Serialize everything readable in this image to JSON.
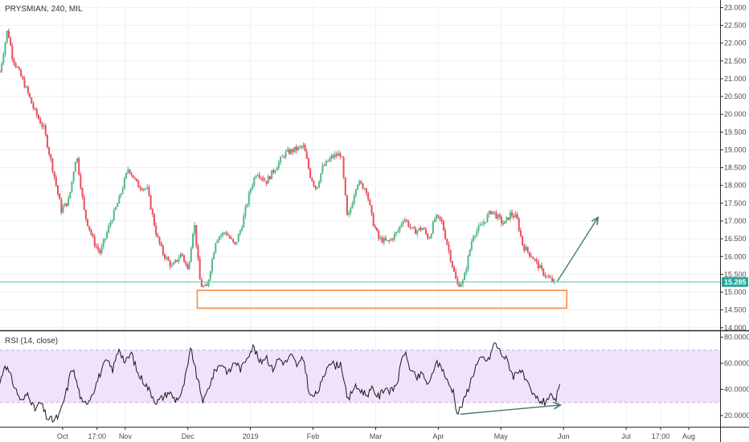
{
  "symbol_title": "PRYSMIAN, 240, MIL",
  "rsi_title": "RSI (14, close)",
  "last_price_label": "15.285",
  "colors": {
    "up": "#53b987",
    "down": "#eb4d5c",
    "grid": "#eef0f3",
    "last_price_line": "#4fc3b4",
    "last_price_badge": "#27a599",
    "rsi_line": "#1a1a1a",
    "rsi_band_fill": "#f1e2fb",
    "rsi_band_border": "#c9a9d9",
    "support_box": "#f0883e",
    "annotation_arrow": "#3e7f6c",
    "axis_border": "#2a2a2a"
  },
  "chart_data": [
    {
      "type": "candlestick",
      "title": "PRYSMIAN, 240, MIL",
      "y_tick_labels": [
        "23.000",
        "22.500",
        "22.000",
        "21.500",
        "21.000",
        "20.500",
        "20.000",
        "19.500",
        "19.000",
        "18.500",
        "18.000",
        "17.500",
        "17.000",
        "16.500",
        "16.000",
        "15.500",
        "15.000",
        "14.500",
        "14.000"
      ],
      "y_ticks": [
        23.0,
        22.5,
        22.0,
        21.5,
        21.0,
        20.5,
        20.0,
        19.5,
        19.0,
        18.5,
        18.0,
        17.5,
        17.0,
        16.5,
        16.0,
        15.5,
        15.0,
        14.5,
        14.0
      ],
      "ylim": [
        13.95,
        23.1
      ],
      "x_tick_labels": [
        "Oct",
        "17:00",
        "Nov",
        "Dec",
        "2019",
        "Feb",
        "Mar",
        "Apr",
        "May",
        "Jun",
        "Jul",
        "17:00",
        "Aug"
      ],
      "x_ticks": [
        1.0,
        1.55,
        2.0,
        3.0,
        4.0,
        5.0,
        6.0,
        7.0,
        8.0,
        9.0,
        10.0,
        10.55,
        11.0
      ],
      "x_unit": "months since start of Sep 2018",
      "last_price": 15.285,
      "price_path": [
        [
          0.0,
          21.2
        ],
        [
          0.12,
          22.4
        ],
        [
          0.2,
          21.6
        ],
        [
          0.4,
          20.8
        ],
        [
          0.55,
          20.1
        ],
        [
          0.7,
          19.6
        ],
        [
          0.85,
          18.4
        ],
        [
          0.98,
          17.3
        ],
        [
          1.1,
          17.6
        ],
        [
          1.22,
          18.9
        ],
        [
          1.35,
          17.2
        ],
        [
          1.5,
          16.4
        ],
        [
          1.6,
          16.1
        ],
        [
          1.75,
          16.9
        ],
        [
          1.9,
          17.6
        ],
        [
          2.05,
          18.5
        ],
        [
          2.2,
          18.0
        ],
        [
          2.35,
          17.9
        ],
        [
          2.5,
          16.6
        ],
        [
          2.6,
          16.1
        ],
        [
          2.75,
          15.7
        ],
        [
          2.9,
          16.1
        ],
        [
          3.0,
          15.6
        ],
        [
          3.1,
          17.0
        ],
        [
          3.2,
          15.2
        ],
        [
          3.3,
          15.1
        ],
        [
          3.45,
          16.5
        ],
        [
          3.6,
          16.7
        ],
        [
          3.75,
          16.3
        ],
        [
          3.85,
          16.8
        ],
        [
          4.0,
          17.9
        ],
        [
          4.1,
          18.4
        ],
        [
          4.25,
          18.1
        ],
        [
          4.4,
          18.5
        ],
        [
          4.55,
          18.9
        ],
        [
          4.7,
          19.0
        ],
        [
          4.85,
          19.1
        ],
        [
          4.95,
          18.3
        ],
        [
          5.05,
          17.9
        ],
        [
          5.15,
          18.5
        ],
        [
          5.3,
          18.8
        ],
        [
          5.45,
          18.9
        ],
        [
          5.55,
          17.0
        ],
        [
          5.7,
          18.1
        ],
        [
          5.85,
          17.9
        ],
        [
          5.95,
          17.0
        ],
        [
          6.05,
          16.5
        ],
        [
          6.2,
          16.4
        ],
        [
          6.35,
          16.7
        ],
        [
          6.45,
          17.1
        ],
        [
          6.6,
          16.7
        ],
        [
          6.75,
          16.8
        ],
        [
          6.85,
          16.5
        ],
        [
          6.95,
          17.1
        ],
        [
          7.05,
          17.0
        ],
        [
          7.15,
          16.3
        ],
        [
          7.3,
          15.2
        ],
        [
          7.4,
          15.3
        ],
        [
          7.55,
          16.6
        ],
        [
          7.7,
          16.9
        ],
        [
          7.85,
          17.3
        ],
        [
          7.95,
          17.1
        ],
        [
          8.05,
          16.9
        ],
        [
          8.15,
          17.2
        ],
        [
          8.25,
          17.1
        ],
        [
          8.35,
          16.3
        ],
        [
          8.5,
          16.0
        ],
        [
          8.65,
          15.6
        ],
        [
          8.75,
          15.4
        ],
        [
          8.85,
          15.285
        ]
      ],
      "annotations": [
        {
          "type": "rectangle",
          "x": [
            3.15,
            9.05
          ],
          "y": [
            14.55,
            15.05
          ],
          "color": "#f0883e"
        },
        {
          "type": "arrow",
          "from": [
            8.9,
            15.3
          ],
          "to": [
            9.55,
            17.1
          ],
          "color": "#3e7f6c"
        }
      ]
    },
    {
      "type": "line",
      "title": "RSI (14, close)",
      "y_tick_labels": [
        "80.0000",
        "60.0000",
        "40.0000",
        "20.0000"
      ],
      "y_ticks": [
        80,
        60,
        40,
        20
      ],
      "ylim": [
        12,
        84
      ],
      "band": [
        30,
        70
      ],
      "rsi_path": [
        [
          0.0,
          45
        ],
        [
          0.08,
          60
        ],
        [
          0.15,
          52
        ],
        [
          0.25,
          40
        ],
        [
          0.35,
          30
        ],
        [
          0.45,
          38
        ],
        [
          0.55,
          24
        ],
        [
          0.65,
          30
        ],
        [
          0.75,
          18
        ],
        [
          0.85,
          16
        ],
        [
          0.95,
          20
        ],
        [
          1.0,
          28
        ],
        [
          1.08,
          42
        ],
        [
          1.15,
          58
        ],
        [
          1.22,
          46
        ],
        [
          1.32,
          28
        ],
        [
          1.42,
          32
        ],
        [
          1.5,
          40
        ],
        [
          1.6,
          52
        ],
        [
          1.7,
          62
        ],
        [
          1.8,
          55
        ],
        [
          1.9,
          72
        ],
        [
          2.0,
          60
        ],
        [
          2.1,
          68
        ],
        [
          2.2,
          52
        ],
        [
          2.3,
          46
        ],
        [
          2.4,
          38
        ],
        [
          2.5,
          30
        ],
        [
          2.6,
          34
        ],
        [
          2.7,
          38
        ],
        [
          2.8,
          32
        ],
        [
          2.9,
          36
        ],
        [
          3.0,
          58
        ],
        [
          3.05,
          72
        ],
        [
          3.15,
          48
        ],
        [
          3.25,
          30
        ],
        [
          3.35,
          44
        ],
        [
          3.45,
          56
        ],
        [
          3.55,
          60
        ],
        [
          3.65,
          52
        ],
        [
          3.75,
          62
        ],
        [
          3.85,
          55
        ],
        [
          3.95,
          66
        ],
        [
          4.05,
          73
        ],
        [
          4.15,
          60
        ],
        [
          4.25,
          66
        ],
        [
          4.35,
          55
        ],
        [
          4.45,
          64
        ],
        [
          4.55,
          60
        ],
        [
          4.65,
          66
        ],
        [
          4.75,
          58
        ],
        [
          4.85,
          64
        ],
        [
          4.95,
          34
        ],
        [
          5.05,
          36
        ],
        [
          5.15,
          46
        ],
        [
          5.25,
          62
        ],
        [
          5.35,
          58
        ],
        [
          5.45,
          60
        ],
        [
          5.55,
          30
        ],
        [
          5.65,
          42
        ],
        [
          5.75,
          40
        ],
        [
          5.85,
          36
        ],
        [
          5.95,
          40
        ],
        [
          6.05,
          34
        ],
        [
          6.15,
          42
        ],
        [
          6.25,
          38
        ],
        [
          6.35,
          46
        ],
        [
          6.45,
          70
        ],
        [
          6.55,
          56
        ],
        [
          6.65,
          48
        ],
        [
          6.75,
          52
        ],
        [
          6.85,
          42
        ],
        [
          6.95,
          60
        ],
        [
          7.05,
          58
        ],
        [
          7.15,
          45
        ],
        [
          7.25,
          38
        ],
        [
          7.3,
          21
        ],
        [
          7.4,
          30
        ],
        [
          7.5,
          44
        ],
        [
          7.6,
          58
        ],
        [
          7.7,
          64
        ],
        [
          7.8,
          62
        ],
        [
          7.9,
          76
        ],
        [
          8.0,
          68
        ],
        [
          8.1,
          62
        ],
        [
          8.2,
          50
        ],
        [
          8.3,
          56
        ],
        [
          8.4,
          46
        ],
        [
          8.5,
          36
        ],
        [
          8.6,
          32
        ],
        [
          8.7,
          30
        ],
        [
          8.78,
          36
        ],
        [
          8.85,
          29
        ],
        [
          8.95,
          43
        ]
      ],
      "annotations": [
        {
          "type": "arrow",
          "from": [
            7.35,
            21
          ],
          "to": [
            8.95,
            28
          ],
          "color": "#3e7f6c"
        }
      ]
    }
  ]
}
